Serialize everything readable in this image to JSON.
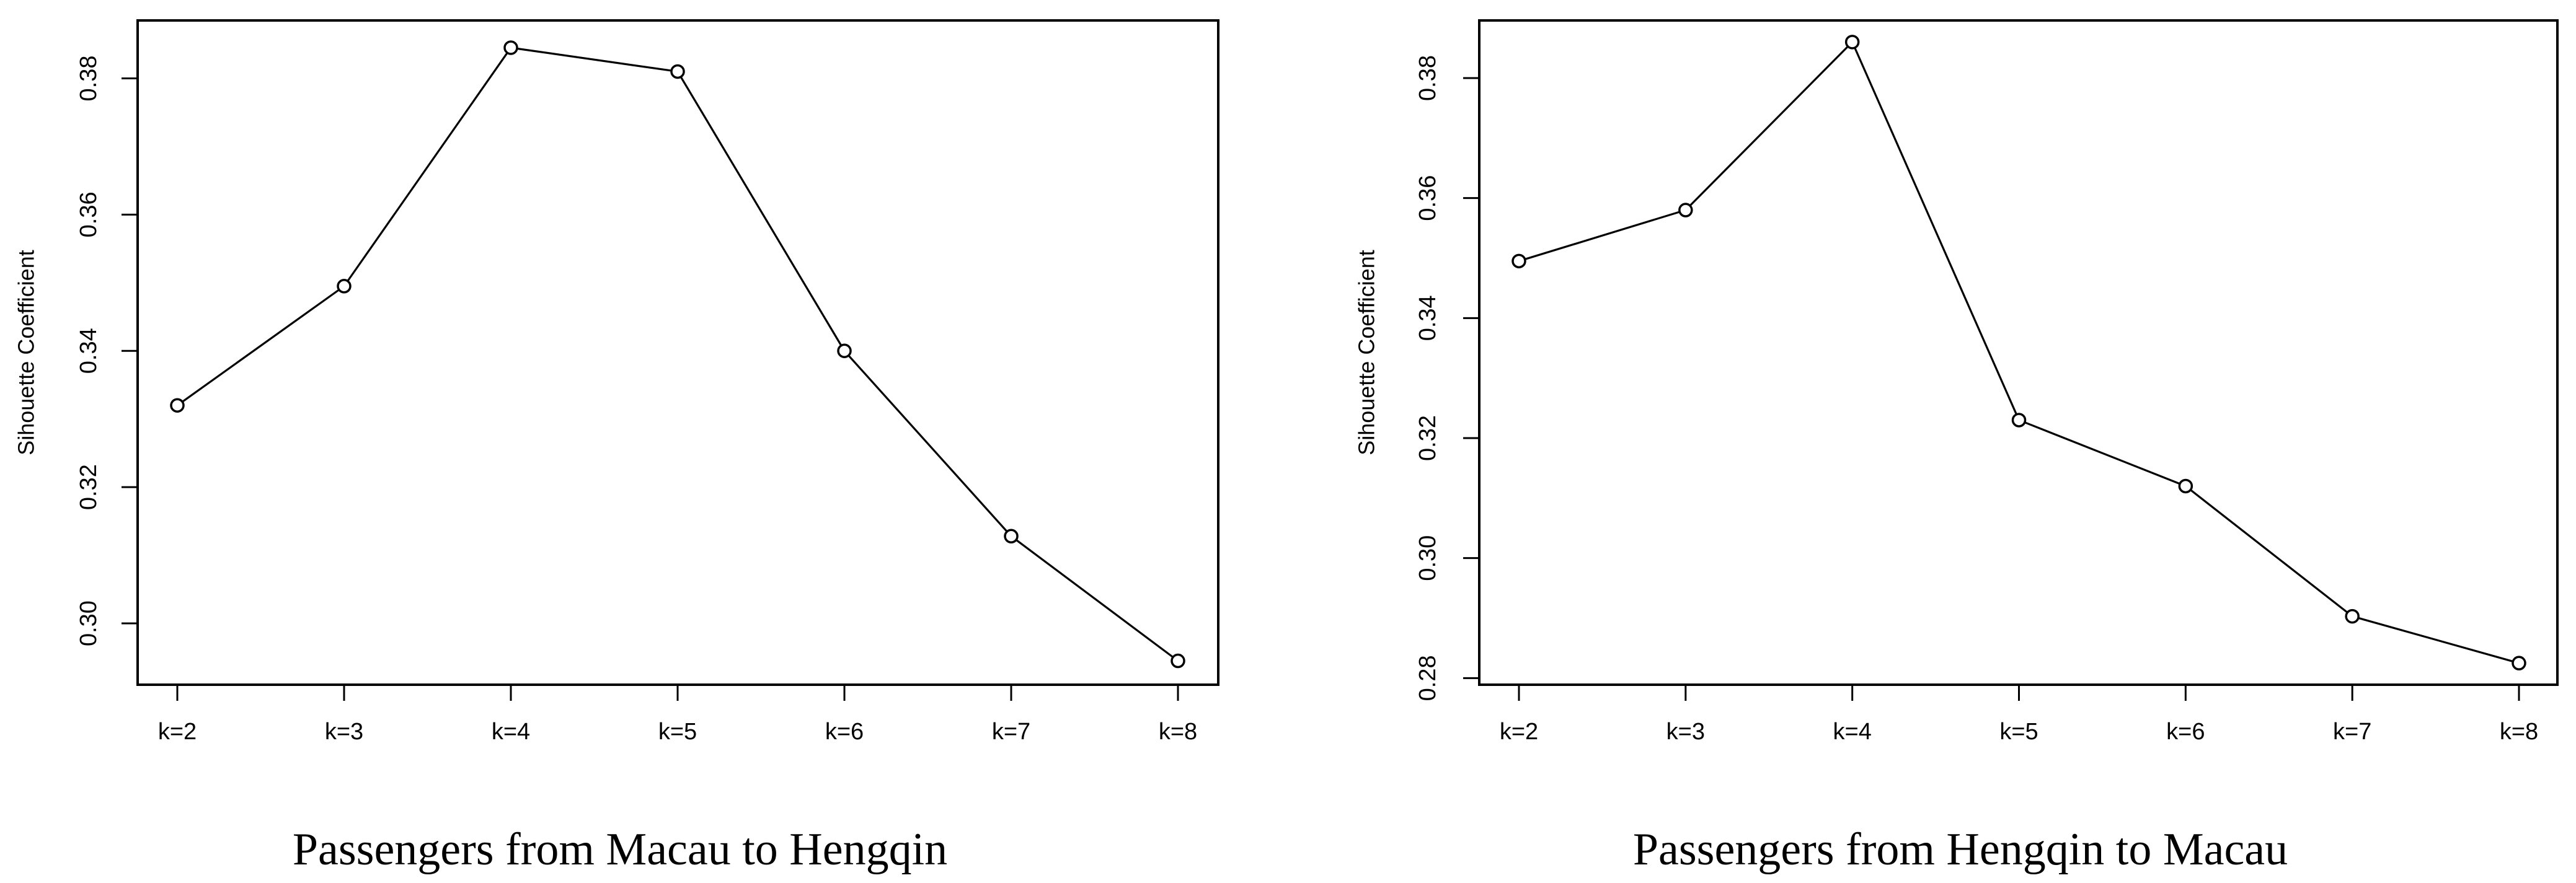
{
  "chart_data": [
    {
      "type": "line",
      "caption": "Passengers from Macau to Hengqin",
      "title": "",
      "xlabel": "",
      "ylabel": "Sihouette Coefficient",
      "categories": [
        "k=2",
        "k=3",
        "k=4",
        "k=5",
        "k=6",
        "k=7",
        "k=8"
      ],
      "series": [
        {
          "values": [
            0.332,
            0.3495,
            0.3845,
            0.381,
            0.34,
            0.3128,
            0.2945
          ]
        }
      ],
      "ylim": [
        0.291,
        0.3885
      ],
      "yticks": [
        0.3,
        0.32,
        0.34,
        0.36,
        0.38
      ],
      "ytick_labels": [
        "0.30",
        "0.32",
        "0.34",
        "0.36",
        "0.38"
      ],
      "marker": "open-circle",
      "grid": false,
      "legend": "none"
    },
    {
      "type": "line",
      "caption": "Passengers from Hengqin to Macau",
      "title": "",
      "xlabel": "",
      "ylabel": "Sihouette Coefficient",
      "categories": [
        "k=2",
        "k=3",
        "k=4",
        "k=5",
        "k=6",
        "k=7",
        "k=8"
      ],
      "series": [
        {
          "values": [
            0.3495,
            0.358,
            0.386,
            0.323,
            0.312,
            0.2903,
            0.2825
          ]
        }
      ],
      "ylim": [
        0.2789,
        0.3896
      ],
      "yticks": [
        0.28,
        0.3,
        0.32,
        0.34,
        0.36,
        0.38
      ],
      "ytick_labels": [
        "0.28",
        "0.30",
        "0.32",
        "0.34",
        "0.36",
        "0.38"
      ],
      "marker": "open-circle",
      "grid": false,
      "legend": "none"
    }
  ]
}
